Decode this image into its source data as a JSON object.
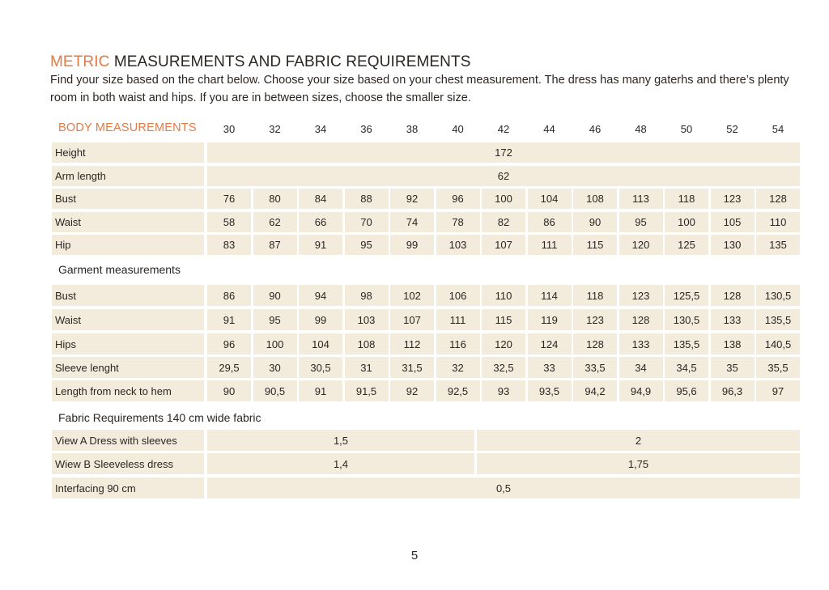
{
  "title": {
    "accent": "METRIC",
    "rest": " MEASUREMENTS AND FABRIC REQUIREMENTS"
  },
  "intro": "Find your size based on the chart below. Choose your size based on your chest measurement. The dress has many gaterhs and there’s plenty room in both waist and hips. If you are in between sizes, choose the smaller size.",
  "sizes_label": "BODY MEASUREMENTS",
  "sizes": [
    "30",
    "32",
    "34",
    "36",
    "38",
    "40",
    "42",
    "44",
    "46",
    "48",
    "50",
    "52",
    "54"
  ],
  "body": {
    "height": {
      "label": "Height",
      "value": "172"
    },
    "arm_length": {
      "label": "Arm length",
      "value": "62"
    },
    "rows": [
      {
        "label": "Bust",
        "values": [
          "76",
          "80",
          "84",
          "88",
          "92",
          "96",
          "100",
          "104",
          "108",
          "113",
          "118",
          "123",
          "128"
        ]
      },
      {
        "label": "Waist",
        "values": [
          "58",
          "62",
          "66",
          "70",
          "74",
          "78",
          "82",
          "86",
          "90",
          "95",
          "100",
          "105",
          "110"
        ]
      },
      {
        "label": "Hip",
        "values": [
          "83",
          "87",
          "91",
          "95",
          "99",
          "103",
          "107",
          "111",
          "115",
          "120",
          "125",
          "130",
          "135"
        ]
      }
    ]
  },
  "garment": {
    "title": "Garment measurements",
    "rows": [
      {
        "label": "Bust",
        "values": [
          "86",
          "90",
          "94",
          "98",
          "102",
          "106",
          "110",
          "114",
          "118",
          "123",
          "125,5",
          "128",
          "130,5"
        ]
      },
      {
        "label": "Waist",
        "values": [
          "91",
          "95",
          "99",
          "103",
          "107",
          "111",
          "115",
          "119",
          "123",
          "128",
          "130,5",
          "133",
          "135,5"
        ]
      },
      {
        "label": "Hips",
        "values": [
          "96",
          "100",
          "104",
          "108",
          "112",
          "116",
          "120",
          "124",
          "128",
          "133",
          "135,5",
          "138",
          "140,5"
        ]
      },
      {
        "label": "Sleeve lenght",
        "values": [
          "29,5",
          "30",
          "30,5",
          "31",
          "31,5",
          "32",
          "32,5",
          "33",
          "33,5",
          "34",
          "34,5",
          "35",
          "35,5"
        ]
      },
      {
        "label": "Length from neck to hem",
        "values": [
          "90",
          "90,5",
          "91",
          "91,5",
          "92",
          "92,5",
          "93",
          "93,5",
          "94,2",
          "94,9",
          "95,6",
          "96,3",
          "97"
        ]
      }
    ]
  },
  "fabric": {
    "title": "Fabric Requirements 140 cm wide fabric",
    "view_a": {
      "label": "View A Dress with sleeves",
      "small": "1,5",
      "large": "2"
    },
    "view_b": {
      "label": "Wiew B Sleeveless dress",
      "small": "1,4",
      "large": "1,75"
    },
    "interfacing": {
      "label": "Interfacing 90 cm",
      "value": "0,5"
    }
  },
  "page_number": "5",
  "colors": {
    "accent": "#e07b45",
    "cell_bg": "#f3ebdc",
    "text": "#2b2622"
  }
}
